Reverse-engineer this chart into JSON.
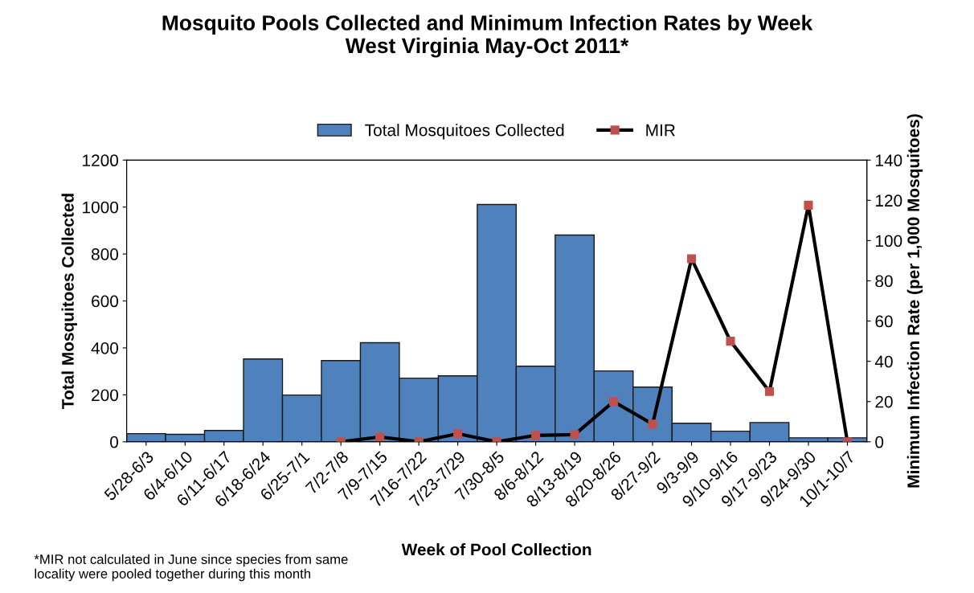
{
  "chart_data": {
    "type": "bar",
    "title": "Mosquito Pools Collected and Minimum Infection Rates by Week\nWest Virginia May-Oct 2011*",
    "xlabel": "Week of Pool Collection",
    "ylabel": "Total Mosquitoes Collected",
    "y2label": "Minimum Infection Rate (per 1,000 Mosquitoes)",
    "categories": [
      "5/28-6/3",
      "6/4-6/10",
      "6/11-6/17",
      "6/18-6/24",
      "6/25-7/1",
      "7/2-7/8",
      "7/9-7/15",
      "7/16-7/22",
      "7/23-7/29",
      "7/30-8/5",
      "8/6-8/12",
      "8/13-8/19",
      "8/20-8/26",
      "8/27-9/2",
      "9/3-9/9",
      "9/10-9/16",
      "9/17-9/23",
      "9/24-9/30",
      "10/1-10/7"
    ],
    "series": [
      {
        "name": "Total Mosquitoes Collected",
        "color": "#4f81bd",
        "values": [
          35,
          32,
          48,
          353,
          199,
          346,
          422,
          271,
          281,
          1011,
          322,
          881,
          302,
          233,
          79,
          45,
          82,
          17,
          17
        ]
      },
      {
        "name": "MIR",
        "type": "line",
        "axis": "y2",
        "color": "#000000",
        "marker": "square",
        "colors": [
          "#c0504d",
          "#c0504d",
          "#c0504d",
          "#c0504d",
          "#c0504d",
          "#c0504d",
          "#c0504d",
          "#c0504d",
          "#c0504d",
          "#c0504d",
          "#c0504d",
          "#c0504d",
          "#c0504d",
          "#c0504d",
          "#c0504d",
          "#c0504d",
          "#c0504d",
          "#c0504d",
          "#c0504d"
        ],
        "values": [
          null,
          null,
          null,
          null,
          null,
          0,
          2.4,
          0,
          4,
          0,
          3.2,
          3.6,
          20,
          8.8,
          91,
          50,
          25,
          117.6,
          0
        ]
      }
    ],
    "ylim": [
      0,
      1200
    ],
    "yticks": [
      0,
      200,
      400,
      600,
      800,
      1000,
      1200
    ],
    "y2lim": [
      0,
      140
    ],
    "y2ticks": [
      0,
      20,
      40,
      60,
      80,
      100,
      120,
      140
    ],
    "grid": false,
    "legend": "top",
    "annotations": [
      "*MIR not calculated in June since species from same\nlocality were pooled together during this month"
    ]
  }
}
